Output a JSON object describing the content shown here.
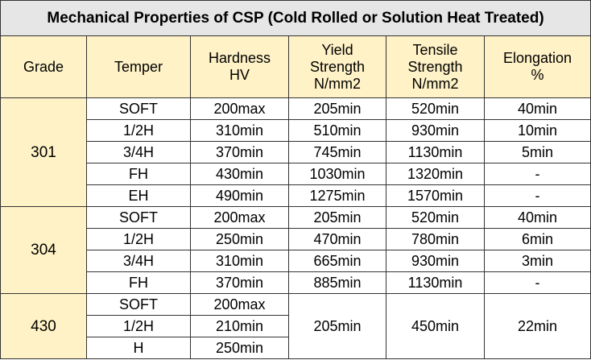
{
  "title": "Mechanical Properties of CSP (Cold Rolled or Solution Heat Treated)",
  "headers": {
    "grade": [
      "Grade"
    ],
    "temper": [
      "Temper"
    ],
    "hardness": [
      "Hardness",
      "HV"
    ],
    "yield": [
      "Yield",
      "Strength",
      "N/mm2"
    ],
    "tensile": [
      "Tensile",
      "Strength",
      "N/mm2"
    ],
    "elongation": [
      "Elongation",
      "%"
    ]
  },
  "groups": [
    {
      "grade": "301",
      "rows": [
        {
          "temper": "SOFT",
          "hardness": "200max",
          "yield": "205min",
          "tensile": "520min",
          "elongation": "40min"
        },
        {
          "temper": "1/2H",
          "hardness": "310min",
          "yield": "510min",
          "tensile": "930min",
          "elongation": "10min"
        },
        {
          "temper": "3/4H",
          "hardness": "370min",
          "yield": "745min",
          "tensile": "1130min",
          "elongation": "5min"
        },
        {
          "temper": "FH",
          "hardness": "430min",
          "yield": "1030min",
          "tensile": "1320min",
          "elongation": "-"
        },
        {
          "temper": "EH",
          "hardness": "490min",
          "yield": "1275min",
          "tensile": "1570min",
          "elongation": "-"
        }
      ]
    },
    {
      "grade": "304",
      "rows": [
        {
          "temper": "SOFT",
          "hardness": "200max",
          "yield": "205min",
          "tensile": "520min",
          "elongation": "40min"
        },
        {
          "temper": "1/2H",
          "hardness": "250min",
          "yield": "470min",
          "tensile": "780min",
          "elongation": "6min"
        },
        {
          "temper": "3/4H",
          "hardness": "310min",
          "yield": "665min",
          "tensile": "930min",
          "elongation": "3min"
        },
        {
          "temper": "FH",
          "hardness": "370min",
          "yield": "885min",
          "tensile": "1130min",
          "elongation": "-"
        }
      ]
    },
    {
      "grade": "430",
      "rows": [
        {
          "temper": "SOFT",
          "hardness": "200max"
        },
        {
          "temper": "1/2H",
          "hardness": "210min"
        },
        {
          "temper": "H",
          "hardness": "250min"
        }
      ],
      "shared": {
        "yield": "205min",
        "tensile": "450min",
        "elongation": "22min"
      }
    }
  ]
}
